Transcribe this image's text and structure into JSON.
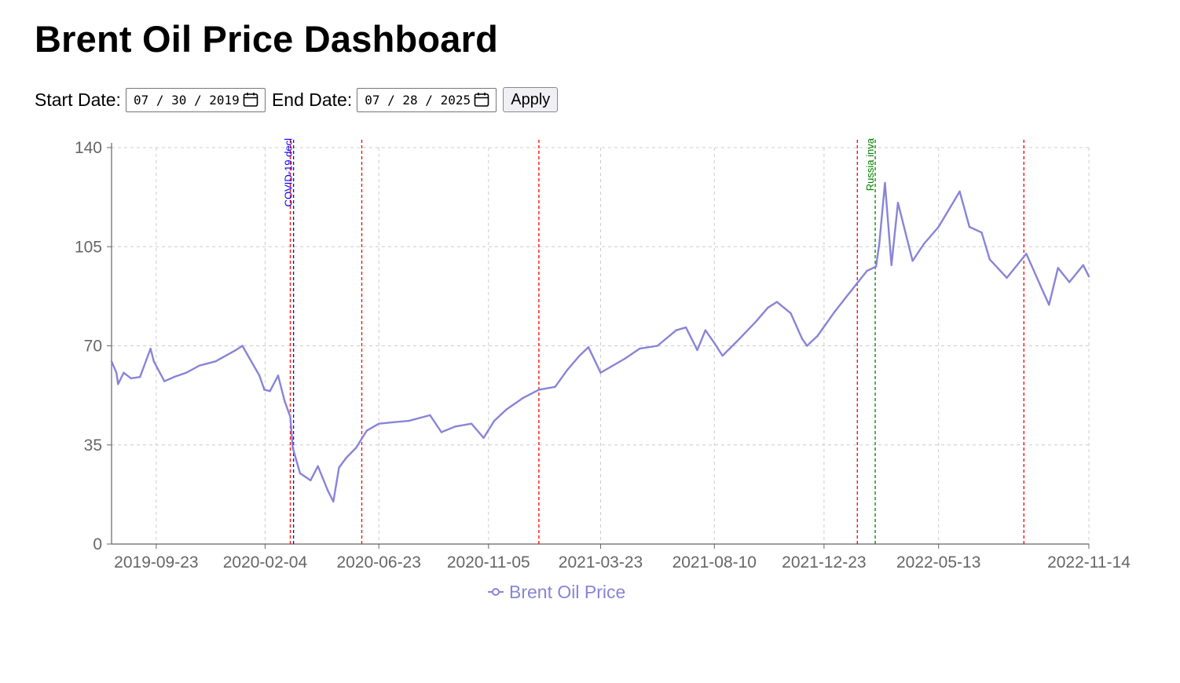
{
  "page": {
    "title": "Brent Oil Price Dashboard"
  },
  "controls": {
    "start_label": "Start Date:",
    "start_value": "07 / 30 / 2019",
    "end_label": "End Date:",
    "end_value": "07 / 28 / 2025",
    "apply_label": "Apply",
    "icon": "calendar-icon"
  },
  "colors": {
    "series": "#8884d8",
    "grid": "#cccccc",
    "axis": "#666666",
    "event_red": "#ff0000",
    "event_blue": "#0000ff",
    "event_green": "#008000"
  },
  "chart_data": {
    "type": "line",
    "title": "",
    "xlabel": "",
    "ylabel": "",
    "grid": true,
    "legend_position": "bottom-center",
    "ylim": [
      0,
      140
    ],
    "yticks": [
      0,
      35,
      70,
      105,
      140
    ],
    "xlim": [
      "2019-07-30",
      "2022-11-14"
    ],
    "xticks": [
      "2019-09-23",
      "2020-02-04",
      "2020-06-23",
      "2020-11-05",
      "2021-03-23",
      "2021-08-10",
      "2021-12-23",
      "2022-05-13",
      "2022-11-14"
    ],
    "series": [
      {
        "name": "Brent Oil Price",
        "points": [
          [
            "2019-07-30",
            64.5
          ],
          [
            "2019-08-05",
            60.5
          ],
          [
            "2019-08-07",
            56.5
          ],
          [
            "2019-08-14",
            60.5
          ],
          [
            "2019-08-23",
            58.5
          ],
          [
            "2019-09-03",
            59.0
          ],
          [
            "2019-09-16",
            69.0
          ],
          [
            "2019-09-20",
            64.5
          ],
          [
            "2019-10-03",
            57.5
          ],
          [
            "2019-10-15",
            59.0
          ],
          [
            "2019-10-30",
            60.5
          ],
          [
            "2019-11-15",
            63.0
          ],
          [
            "2019-12-05",
            64.5
          ],
          [
            "2019-12-30",
            68.5
          ],
          [
            "2020-01-07",
            70.0
          ],
          [
            "2020-01-16",
            65.5
          ],
          [
            "2020-01-28",
            59.5
          ],
          [
            "2020-02-03",
            54.5
          ],
          [
            "2020-02-10",
            54.0
          ],
          [
            "2020-02-20",
            59.5
          ],
          [
            "2020-02-28",
            50.5
          ],
          [
            "2020-03-06",
            45.0
          ],
          [
            "2020-03-09",
            34.0
          ],
          [
            "2020-03-18",
            25.0
          ],
          [
            "2020-03-31",
            22.5
          ],
          [
            "2020-04-09",
            27.5
          ],
          [
            "2020-04-21",
            19.0
          ],
          [
            "2020-04-28",
            15.0
          ],
          [
            "2020-05-05",
            27.0
          ],
          [
            "2020-05-14",
            30.5
          ],
          [
            "2020-05-26",
            34.0
          ],
          [
            "2020-06-08",
            40.0
          ],
          [
            "2020-06-23",
            42.5
          ],
          [
            "2020-07-10",
            43.0
          ],
          [
            "2020-07-30",
            43.5
          ],
          [
            "2020-08-25",
            45.5
          ],
          [
            "2020-09-08",
            39.5
          ],
          [
            "2020-09-25",
            41.5
          ],
          [
            "2020-10-15",
            42.5
          ],
          [
            "2020-10-30",
            37.5
          ],
          [
            "2020-11-12",
            43.5
          ],
          [
            "2020-11-27",
            47.5
          ],
          [
            "2020-12-17",
            51.5
          ],
          [
            "2021-01-06",
            54.5
          ],
          [
            "2021-01-26",
            55.5
          ],
          [
            "2021-02-10",
            61.5
          ],
          [
            "2021-02-25",
            66.5
          ],
          [
            "2021-03-08",
            69.5
          ],
          [
            "2021-03-23",
            60.5
          ],
          [
            "2021-04-07",
            63.0
          ],
          [
            "2021-04-22",
            65.5
          ],
          [
            "2021-05-10",
            69.0
          ],
          [
            "2021-06-01",
            70.0
          ],
          [
            "2021-06-24",
            75.5
          ],
          [
            "2021-07-06",
            76.5
          ],
          [
            "2021-07-20",
            68.5
          ],
          [
            "2021-07-30",
            75.5
          ],
          [
            "2021-08-10",
            71.0
          ],
          [
            "2021-08-20",
            66.5
          ],
          [
            "2021-09-10",
            72.5
          ],
          [
            "2021-09-30",
            78.5
          ],
          [
            "2021-10-15",
            83.5
          ],
          [
            "2021-10-26",
            85.5
          ],
          [
            "2021-11-12",
            81.5
          ],
          [
            "2021-11-26",
            72.5
          ],
          [
            "2021-12-02",
            70.0
          ],
          [
            "2021-12-15",
            73.5
          ],
          [
            "2022-01-05",
            82.0
          ],
          [
            "2022-01-20",
            87.5
          ],
          [
            "2022-02-14",
            96.5
          ],
          [
            "2022-02-25",
            98.0
          ],
          [
            "2022-03-01",
            106.0
          ],
          [
            "2022-03-08",
            127.5
          ],
          [
            "2022-03-16",
            98.5
          ],
          [
            "2022-03-24",
            120.5
          ],
          [
            "2022-04-11",
            100.0
          ],
          [
            "2022-04-25",
            106.0
          ],
          [
            "2022-05-13",
            112.0
          ],
          [
            "2022-06-08",
            124.5
          ],
          [
            "2022-06-20",
            112.0
          ],
          [
            "2022-07-05",
            110.0
          ],
          [
            "2022-07-15",
            100.5
          ],
          [
            "2022-08-05",
            94.0
          ],
          [
            "2022-08-29",
            102.5
          ],
          [
            "2022-09-15",
            91.5
          ],
          [
            "2022-09-26",
            84.5
          ],
          [
            "2022-10-07",
            97.5
          ],
          [
            "2022-10-21",
            92.5
          ],
          [
            "2022-11-07",
            98.5
          ],
          [
            "2022-11-14",
            94.5
          ]
        ]
      }
    ],
    "events": [
      {
        "date": "2020-03-06",
        "label": "",
        "color": "#ff0000"
      },
      {
        "date": "2020-03-10",
        "label": "COVID-19 decl",
        "color": "#0000ff"
      },
      {
        "date": "2020-06-02",
        "label": "",
        "color": "#ff0000"
      },
      {
        "date": "2021-01-06",
        "label": "",
        "color": "#ff0000"
      },
      {
        "date": "2022-02-02",
        "label": "",
        "color": "#ff0000"
      },
      {
        "date": "2022-02-24",
        "label": "Russia inva",
        "color": "#008000"
      },
      {
        "date": "2022-08-26",
        "label": "",
        "color": "#ff0000"
      }
    ]
  }
}
